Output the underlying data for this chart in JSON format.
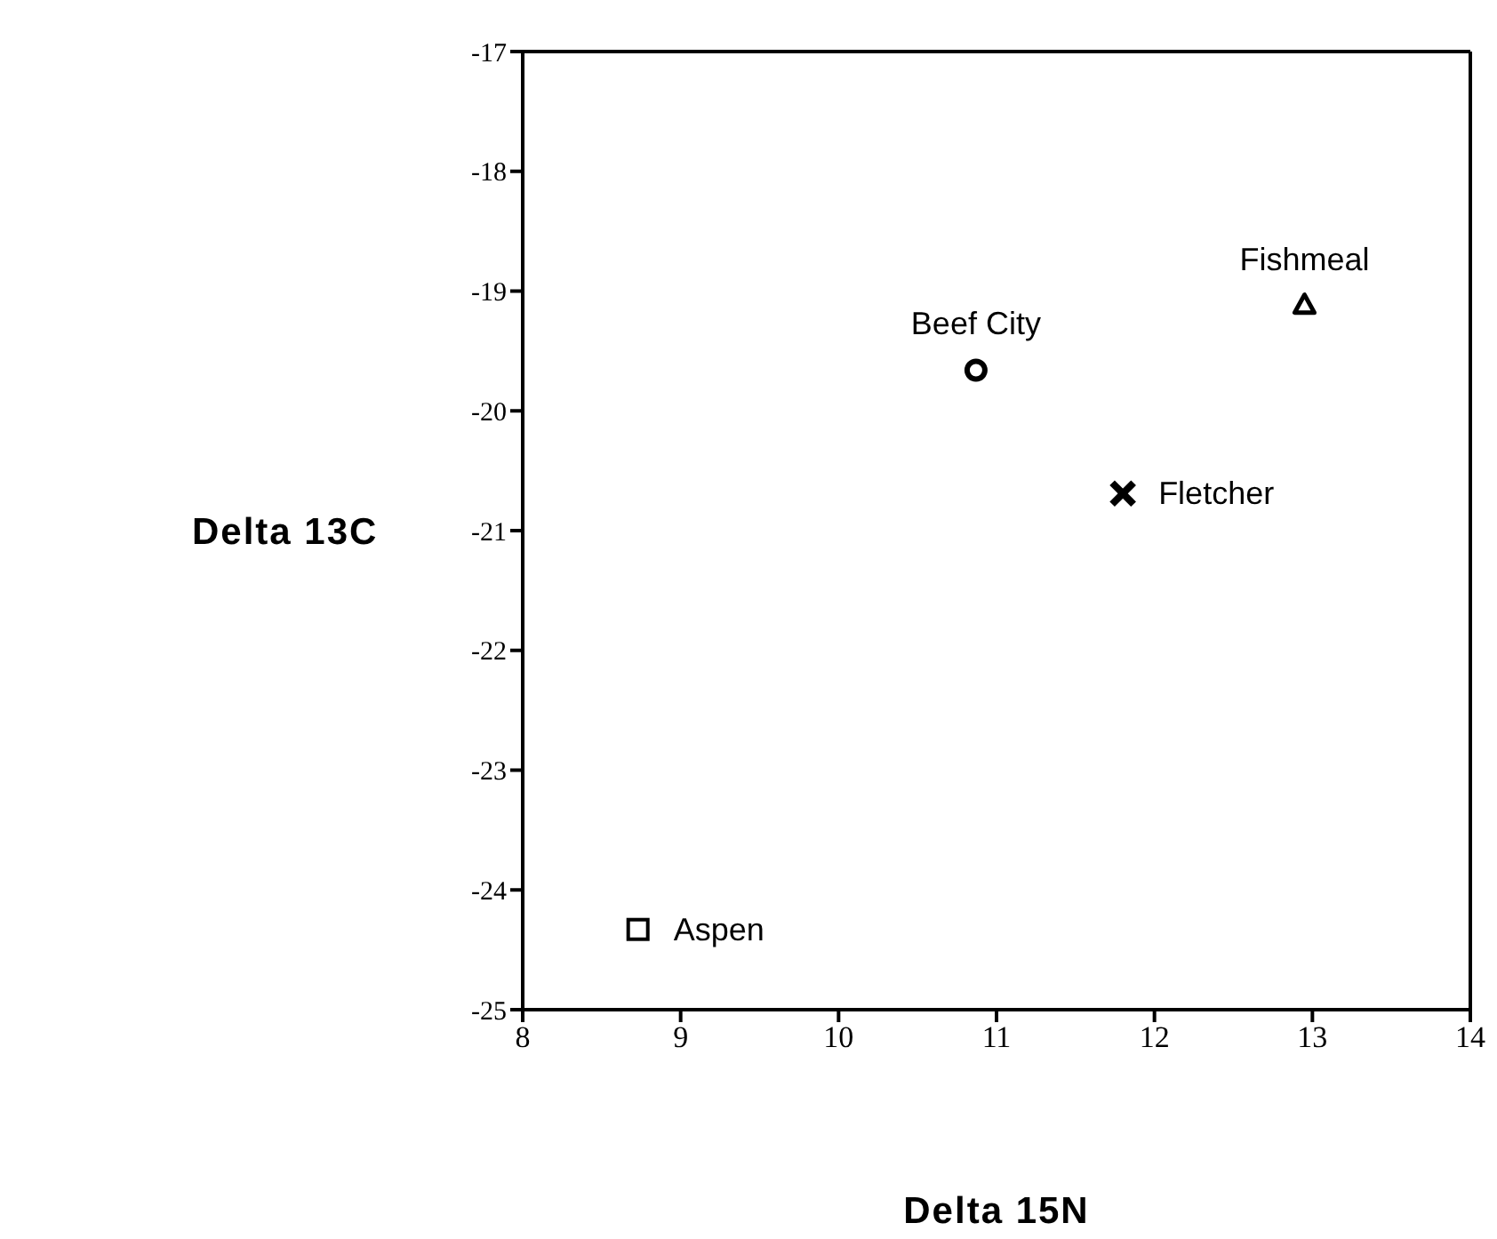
{
  "chart_data": {
    "type": "scatter",
    "xlabel": "Delta 15N",
    "ylabel": "Delta 13C",
    "xlim": [
      8,
      14
    ],
    "xticks": [
      8,
      9,
      10,
      11,
      12,
      13,
      14
    ],
    "ylim": [
      -25,
      -17
    ],
    "yticks": [
      -25,
      -24,
      -23,
      -22,
      -21,
      -20,
      -19,
      -18,
      -17
    ],
    "legend": false,
    "series": [
      {
        "name": "Beef City",
        "color": "#000000",
        "marker": "circle",
        "x": [
          10.87
        ],
        "values": [
          -19.66
        ]
      },
      {
        "name": "Fishmeal",
        "color": "#000000",
        "marker": "triangle",
        "x": [
          12.95
        ],
        "values": [
          -19.12
        ]
      },
      {
        "name": "Fletcher",
        "color": "#000000",
        "marker": "cross",
        "x": [
          11.8
        ],
        "values": [
          -20.69
        ]
      },
      {
        "name": "Aspen",
        "color": "#000000",
        "marker": "square",
        "x": [
          8.73
        ],
        "values": [
          -24.33
        ]
      }
    ]
  }
}
